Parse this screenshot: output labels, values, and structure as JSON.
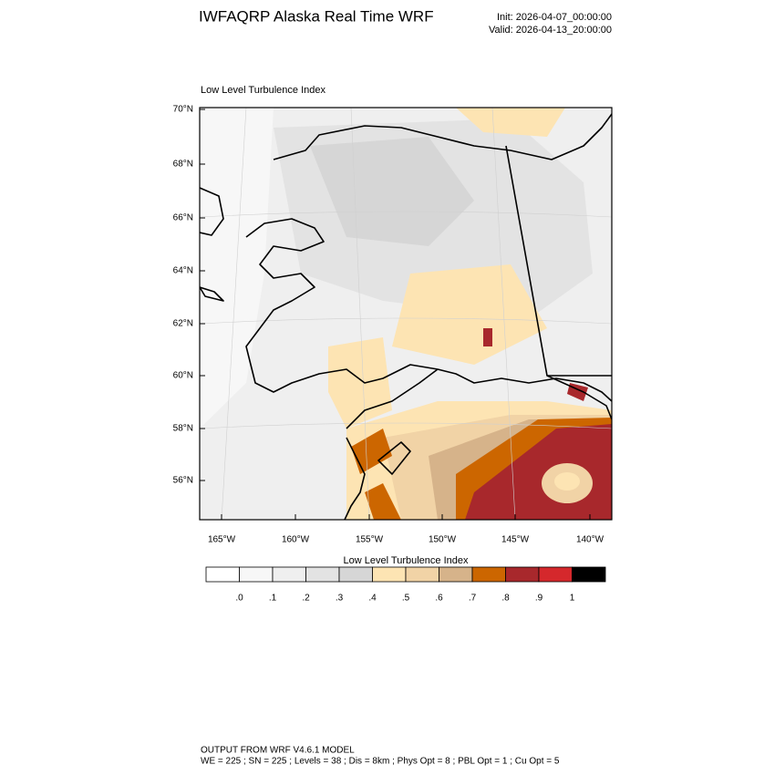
{
  "header": {
    "title": "IWFAQRP Alaska Real Time WRF",
    "init": "Init: 2026-04-07_00:00:00",
    "valid": "Valid: 2026-04-13_20:00:00"
  },
  "map": {
    "title": "Low Level Turbulence Index",
    "lat_labels": [
      "70°N",
      "68°N",
      "66°N",
      "64°N",
      "62°N",
      "60°N",
      "58°N",
      "56°N"
    ],
    "lon_labels": [
      "165°W",
      "160°W",
      "155°W",
      "150°W",
      "145°W",
      "140°W"
    ]
  },
  "colorbar": {
    "title": "Low Level Turbulence Index",
    "colors": [
      "#ffffff",
      "#f7f7f7",
      "#efefef",
      "#e3e3e3",
      "#d6d6d6",
      "#fde4b3",
      "#f1d3a6",
      "#d6b38a",
      "#cc6600",
      "#a8282c",
      "#d5282c",
      "#000000"
    ],
    "labels": [
      ".0",
      ".1",
      ".2",
      ".3",
      ".4",
      ".5",
      ".6",
      ".7",
      ".8",
      ".9",
      "1"
    ]
  },
  "footer": {
    "line1": "OUTPUT FROM WRF V4.6.1 MODEL",
    "line2": "WE = 225 ; SN = 225 ; Levels = 38 ; Dis = 8km ; Phys Opt = 8 ; PBL Opt = 1 ; Cu Opt = 5"
  }
}
